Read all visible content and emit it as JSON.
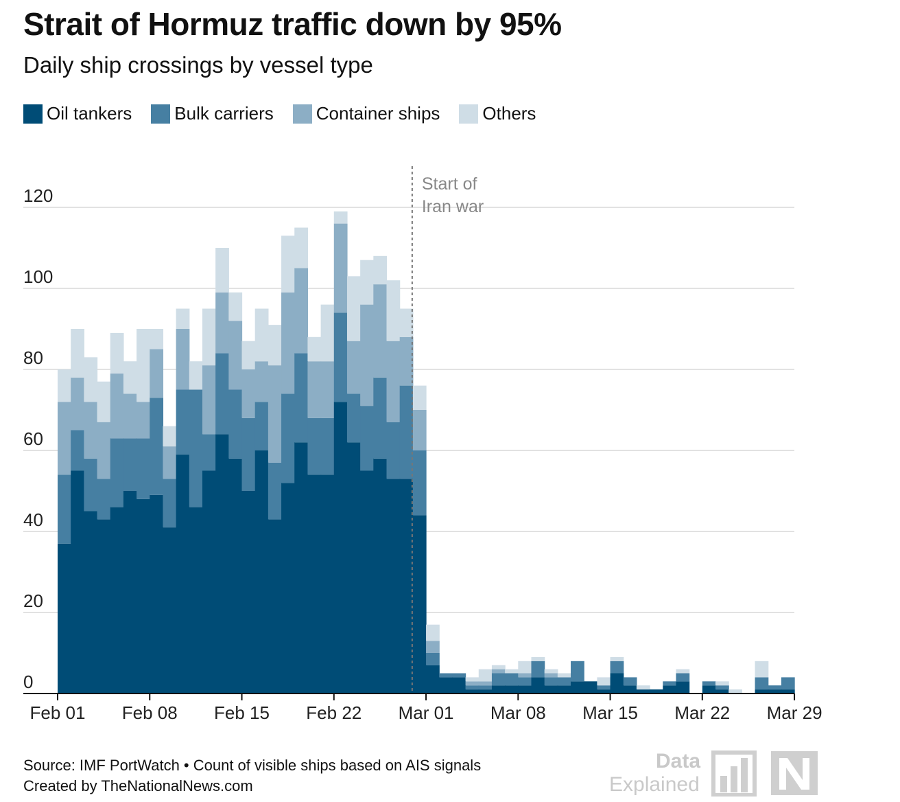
{
  "title": "Strait of Hormuz traffic down by 95%",
  "subtitle": "Daily ship crossings by vessel type",
  "footer": {
    "source": "Source: IMF PortWatch • Count of visible ships based on AIS signals",
    "credit": "Created by TheNationalNews.com"
  },
  "brand": {
    "line1": "Data",
    "line2": "Explained",
    "mark_color": "#cfcfcf"
  },
  "chart_data": {
    "type": "bar",
    "stacked": true,
    "title": "Strait of Hormuz traffic down by 95%",
    "subtitle": "Daily ship crossings by vessel type",
    "xlabel": "",
    "ylabel": "",
    "ylim": [
      0,
      130
    ],
    "y_ticks": [
      0,
      20,
      40,
      60,
      80,
      100,
      120
    ],
    "grid": true,
    "legend": "top-left",
    "x_tick_labels": [
      {
        "day": 0,
        "label": "Feb 01"
      },
      {
        "day": 7,
        "label": "Feb 08"
      },
      {
        "day": 14,
        "label": "Feb 15"
      },
      {
        "day": 21,
        "label": "Feb 22"
      },
      {
        "day": 28,
        "label": "Mar 01"
      },
      {
        "day": 35,
        "label": "Mar 08"
      },
      {
        "day": 42,
        "label": "Mar 15"
      },
      {
        "day": 49,
        "label": "Mar 22"
      },
      {
        "day": 56,
        "label": "Mar 29"
      }
    ],
    "annotation": {
      "day": 27,
      "lines": [
        "Start of",
        "Iran war"
      ]
    },
    "series": [
      {
        "name": "Oil tankers",
        "color": "#004c76",
        "values": [
          37,
          55,
          45,
          43,
          46,
          50,
          48,
          49,
          41,
          59,
          46,
          55,
          64,
          58,
          50,
          60,
          43,
          52,
          62,
          54,
          54,
          72,
          62,
          55,
          58,
          53,
          53,
          44,
          7,
          4,
          4,
          1,
          1,
          2,
          2,
          2,
          4,
          2,
          2,
          3,
          3,
          1,
          5,
          2,
          1,
          1,
          2,
          3,
          0,
          2,
          1,
          0,
          0,
          1,
          1,
          1
        ]
      },
      {
        "name": "Bulk carriers",
        "color": "#467fa2",
        "values": [
          17,
          10,
          13,
          10,
          17,
          13,
          15,
          24,
          12,
          16,
          29,
          9,
          20,
          17,
          18,
          12,
          14,
          22,
          22,
          14,
          14,
          22,
          12,
          16,
          20,
          14,
          23,
          16,
          3,
          1,
          1,
          1,
          1,
          3,
          3,
          2,
          4,
          2,
          2,
          5,
          0,
          1,
          3,
          2,
          0,
          0,
          1,
          2,
          0,
          1,
          1,
          0,
          0,
          3,
          1,
          3
        ]
      },
      {
        "name": "Container ships",
        "color": "#8caec5",
        "values": [
          18,
          13,
          14,
          14,
          16,
          11,
          9,
          12,
          8,
          15,
          0,
          17,
          15,
          17,
          12,
          10,
          24,
          25,
          21,
          14,
          14,
          22,
          13,
          25,
          23,
          20,
          12,
          10,
          3,
          0,
          0,
          1,
          1,
          1,
          0,
          1,
          0,
          1,
          0,
          0,
          0,
          0,
          0,
          0,
          0,
          0,
          0,
          0,
          0,
          0,
          0,
          0,
          0,
          0,
          0,
          0
        ]
      },
      {
        "name": "Others",
        "color": "#cfdde6",
        "values": [
          8,
          12,
          11,
          10,
          10,
          8,
          18,
          5,
          5,
          5,
          7,
          14,
          11,
          7,
          7,
          13,
          10,
          14,
          10,
          6,
          14,
          3,
          16,
          11,
          7,
          15,
          7,
          6,
          4,
          0,
          0,
          1,
          3,
          1,
          1,
          3,
          1,
          1,
          1,
          0,
          0,
          2,
          1,
          0,
          1,
          0,
          0,
          1,
          0,
          0,
          1,
          1,
          0,
          4,
          0,
          0
        ]
      }
    ]
  }
}
